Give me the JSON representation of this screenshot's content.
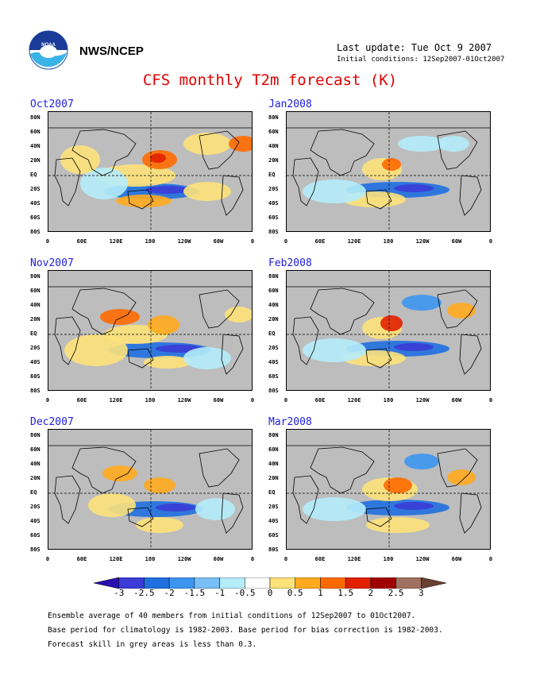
{
  "header": {
    "org": "NWS/NCEP",
    "last_update": "Last update: Tue Oct 9 2007",
    "initial_conditions": "Initial conditions: 12Sep2007-01Oct2007"
  },
  "title": "CFS monthly T2m forecast (K)",
  "panels": [
    {
      "label": "Oct2007"
    },
    {
      "label": "Nov2007"
    },
    {
      "label": "Dec2007"
    },
    {
      "label": "Jan2008"
    },
    {
      "label": "Feb2008"
    },
    {
      "label": "Mar2008"
    }
  ],
  "lat_labels": [
    "80N",
    "60N",
    "40N",
    "20N",
    "EQ",
    "20S",
    "40S",
    "60S",
    "80S"
  ],
  "lon_labels": [
    "0",
    "60E",
    "120E",
    "180",
    "120W",
    "60W",
    "0"
  ],
  "colorbar": {
    "ticks": [
      "-3",
      "-2.5",
      "-2",
      "-1.5",
      "-1",
      "-0.5",
      "0",
      "0.5",
      "1",
      "1.5",
      "2",
      "2.5",
      "3"
    ],
    "colors": [
      "#2a0fb0",
      "#3b3bd6",
      "#1f6fe0",
      "#3c96f0",
      "#78bff5",
      "#b4ecfa",
      "#ffffff",
      "#fde27a",
      "#ffaa1e",
      "#ff6a00",
      "#e12000",
      "#a00000",
      "#a07060",
      "#6a4030"
    ]
  },
  "notes": [
    "Ensemble average of 40 members from initial conditions of 12Sep2007 to 01Oct2007.",
    "Base period for climatology is 1982-2003. Base period for bias correction is 1982-2003.",
    "Forecast skill in grey areas is less than 0.3."
  ]
}
